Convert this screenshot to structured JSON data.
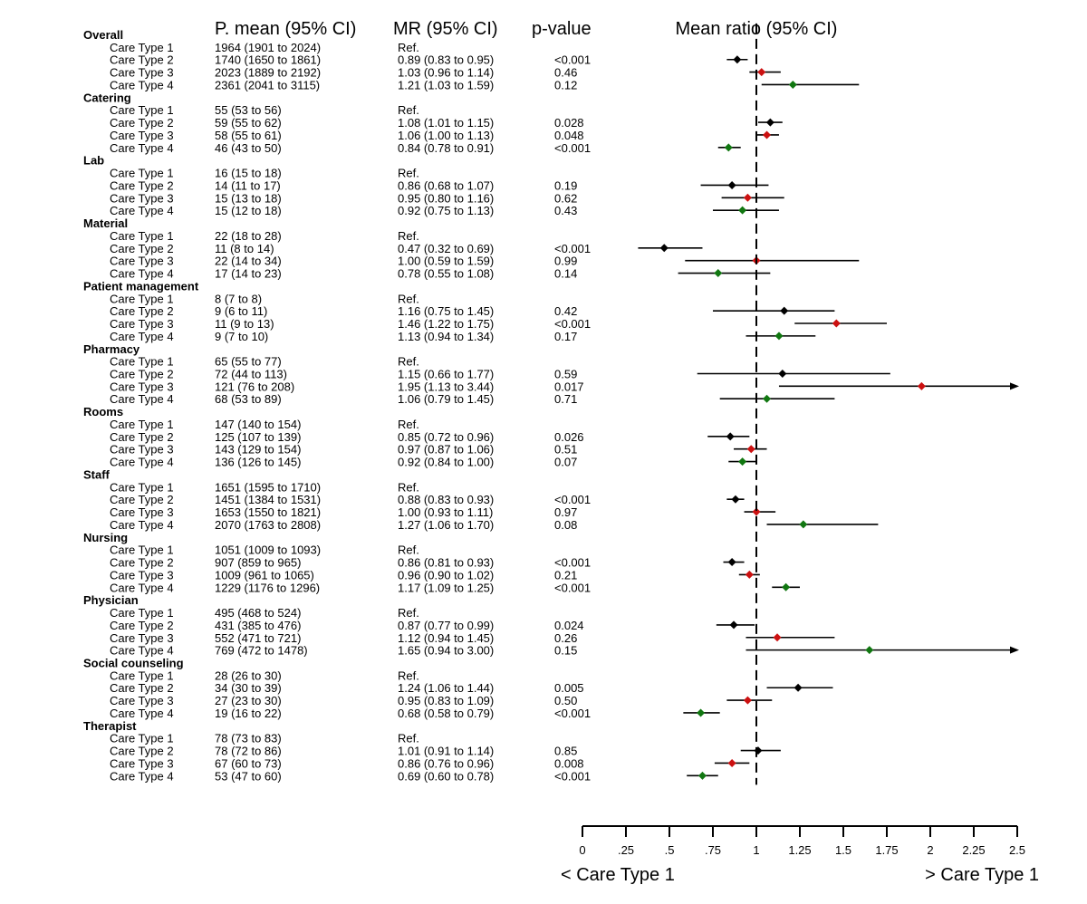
{
  "chart_data": {
    "type": "forest",
    "title": "Mean ratio (95% CI)",
    "headers": {
      "label": "",
      "pmean": "P. mean (95% CI)",
      "mr": "MR (95% CI)",
      "pvalue": "p-value",
      "plot": "Mean ratio (95% CI)"
    },
    "reference_line": 1,
    "xlim": [
      0,
      2.5
    ],
    "ticks": [
      {
        "value": 0,
        "label": "0"
      },
      {
        "value": 0.25,
        "label": ".25"
      },
      {
        "value": 0.5,
        "label": ".5"
      },
      {
        "value": 0.75,
        "label": ".75"
      },
      {
        "value": 1,
        "label": "1"
      },
      {
        "value": 1.25,
        "label": "1.25"
      },
      {
        "value": 1.5,
        "label": "1.5"
      },
      {
        "value": 1.75,
        "label": "1.75"
      },
      {
        "value": 2,
        "label": "2"
      },
      {
        "value": 2.25,
        "label": "2.25"
      },
      {
        "value": 2.5,
        "label": "2.5"
      }
    ],
    "direction_labels": {
      "left": "< Care Type 1",
      "right": "> Care Type 1"
    },
    "series_colors": {
      "Care Type 2": "#000000",
      "Care Type 3": "#cc1111",
      "Care Type 4": "#117711"
    },
    "groups": [
      {
        "name": "Overall",
        "rows": [
          {
            "label": "Care Type 1",
            "pmean": "1964 (1901 to 2024)",
            "mr": "Ref.",
            "p": "",
            "est": null,
            "lo": null,
            "hi": null
          },
          {
            "label": "Care Type 2",
            "pmean": "1740 (1650 to 1861)",
            "mr": "0.89 (0.83 to 0.95)",
            "p": "<0.001",
            "est": 0.89,
            "lo": 0.83,
            "hi": 0.95
          },
          {
            "label": "Care Type 3",
            "pmean": "2023 (1889 to 2192)",
            "mr": "1.03 (0.96 to 1.14)",
            "p": "0.46",
            "est": 1.03,
            "lo": 0.96,
            "hi": 1.14
          },
          {
            "label": "Care Type 4",
            "pmean": "2361 (2041 to 3115)",
            "mr": "1.21 (1.03 to 1.59)",
            "p": "0.12",
            "est": 1.21,
            "lo": 1.03,
            "hi": 1.59
          }
        ]
      },
      {
        "name": "Catering",
        "rows": [
          {
            "label": "Care Type 1",
            "pmean": "55 (53 to 56)",
            "mr": "Ref.",
            "p": "",
            "est": null,
            "lo": null,
            "hi": null
          },
          {
            "label": "Care Type 2",
            "pmean": "59 (55 to 62)",
            "mr": "1.08 (1.01 to 1.15)",
            "p": "0.028",
            "est": 1.08,
            "lo": 1.01,
            "hi": 1.15
          },
          {
            "label": "Care Type 3",
            "pmean": "58 (55 to 61)",
            "mr": "1.06 (1.00 to 1.13)",
            "p": "0.048",
            "est": 1.06,
            "lo": 1.0,
            "hi": 1.13
          },
          {
            "label": "Care Type 4",
            "pmean": "46 (43 to 50)",
            "mr": "0.84 (0.78 to 0.91)",
            "p": "<0.001",
            "est": 0.84,
            "lo": 0.78,
            "hi": 0.91
          }
        ]
      },
      {
        "name": "Lab",
        "rows": [
          {
            "label": "Care Type 1",
            "pmean": "16 (15 to 18)",
            "mr": "Ref.",
            "p": "",
            "est": null,
            "lo": null,
            "hi": null
          },
          {
            "label": "Care Type 2",
            "pmean": "14 (11 to 17)",
            "mr": "0.86 (0.68 to 1.07)",
            "p": "0.19",
            "est": 0.86,
            "lo": 0.68,
            "hi": 1.07
          },
          {
            "label": "Care Type 3",
            "pmean": "15 (13 to 18)",
            "mr": "0.95 (0.80 to 1.16)",
            "p": "0.62",
            "est": 0.95,
            "lo": 0.8,
            "hi": 1.16
          },
          {
            "label": "Care Type 4",
            "pmean": "15 (12 to 18)",
            "mr": "0.92 (0.75 to 1.13)",
            "p": "0.43",
            "est": 0.92,
            "lo": 0.75,
            "hi": 1.13
          }
        ]
      },
      {
        "name": "Material",
        "rows": [
          {
            "label": "Care Type 1",
            "pmean": "22 (18 to 28)",
            "mr": "Ref.",
            "p": "",
            "est": null,
            "lo": null,
            "hi": null
          },
          {
            "label": "Care Type 2",
            "pmean": "11 (8 to 14)",
            "mr": "0.47 (0.32 to 0.69)",
            "p": "<0.001",
            "est": 0.47,
            "lo": 0.32,
            "hi": 0.69
          },
          {
            "label": "Care Type 3",
            "pmean": "22 (14 to 34)",
            "mr": "1.00 (0.59 to 1.59)",
            "p": "0.99",
            "est": 1.0,
            "lo": 0.59,
            "hi": 1.59
          },
          {
            "label": "Care Type 4",
            "pmean": "17 (14 to 23)",
            "mr": "0.78 (0.55 to 1.08)",
            "p": "0.14",
            "est": 0.78,
            "lo": 0.55,
            "hi": 1.08
          }
        ]
      },
      {
        "name": "Patient management",
        "rows": [
          {
            "label": "Care Type 1",
            "pmean": "8 (7 to 8)",
            "mr": "Ref.",
            "p": "",
            "est": null,
            "lo": null,
            "hi": null
          },
          {
            "label": "Care Type 2",
            "pmean": "9 (6 to 11)",
            "mr": "1.16 (0.75 to 1.45)",
            "p": "0.42",
            "est": 1.16,
            "lo": 0.75,
            "hi": 1.45
          },
          {
            "label": "Care Type 3",
            "pmean": "11 (9 to 13)",
            "mr": "1.46 (1.22 to 1.75)",
            "p": "<0.001",
            "est": 1.46,
            "lo": 1.22,
            "hi": 1.75
          },
          {
            "label": "Care Type 4",
            "pmean": "9 (7 to 10)",
            "mr": "1.13 (0.94 to 1.34)",
            "p": "0.17",
            "est": 1.13,
            "lo": 0.94,
            "hi": 1.34
          }
        ]
      },
      {
        "name": "Pharmacy",
        "rows": [
          {
            "label": "Care Type 1",
            "pmean": "65 (55 to 77)",
            "mr": "Ref.",
            "p": "",
            "est": null,
            "lo": null,
            "hi": null
          },
          {
            "label": "Care Type 2",
            "pmean": "72 (44 to 113)",
            "mr": "1.15 (0.66 to 1.77)",
            "p": "0.59",
            "est": 1.15,
            "lo": 0.66,
            "hi": 1.77
          },
          {
            "label": "Care Type 3",
            "pmean": "121 (76 to 208)",
            "mr": "1.95 (1.13 to 3.44)",
            "p": "0.017",
            "est": 1.95,
            "lo": 1.13,
            "hi": 3.44
          },
          {
            "label": "Care Type 4",
            "pmean": "68 (53 to 89)",
            "mr": "1.06 (0.79 to 1.45)",
            "p": "0.71",
            "est": 1.06,
            "lo": 0.79,
            "hi": 1.45
          }
        ]
      },
      {
        "name": "Rooms",
        "rows": [
          {
            "label": "Care Type 1",
            "pmean": "147 (140 to 154)",
            "mr": "Ref.",
            "p": "",
            "est": null,
            "lo": null,
            "hi": null
          },
          {
            "label": "Care Type 2",
            "pmean": "125 (107 to 139)",
            "mr": "0.85 (0.72 to 0.96)",
            "p": "0.026",
            "est": 0.85,
            "lo": 0.72,
            "hi": 0.96
          },
          {
            "label": "Care Type 3",
            "pmean": "143 (129 to 154)",
            "mr": "0.97 (0.87 to 1.06)",
            "p": "0.51",
            "est": 0.97,
            "lo": 0.87,
            "hi": 1.06
          },
          {
            "label": "Care Type 4",
            "pmean": "136 (126 to 145)",
            "mr": "0.92 (0.84 to 1.00)",
            "p": "0.07",
            "est": 0.92,
            "lo": 0.84,
            "hi": 1.0
          }
        ]
      },
      {
        "name": "Staff",
        "rows": [
          {
            "label": "Care Type 1",
            "pmean": "1651 (1595 to 1710)",
            "mr": "Ref.",
            "p": "",
            "est": null,
            "lo": null,
            "hi": null
          },
          {
            "label": "Care Type 2",
            "pmean": "1451 (1384 to 1531)",
            "mr": "0.88 (0.83 to 0.93)",
            "p": "<0.001",
            "est": 0.88,
            "lo": 0.83,
            "hi": 0.93
          },
          {
            "label": "Care Type 3",
            "pmean": "1653 (1550 to 1821)",
            "mr": "1.00 (0.93 to 1.11)",
            "p": "0.97",
            "est": 1.0,
            "lo": 0.93,
            "hi": 1.11
          },
          {
            "label": "Care Type 4",
            "pmean": "2070 (1763 to 2808)",
            "mr": "1.27 (1.06 to 1.70)",
            "p": "0.08",
            "est": 1.27,
            "lo": 1.06,
            "hi": 1.7
          }
        ]
      },
      {
        "name": "Nursing",
        "rows": [
          {
            "label": "Care Type 1",
            "pmean": "1051 (1009 to 1093)",
            "mr": "Ref.",
            "p": "",
            "est": null,
            "lo": null,
            "hi": null
          },
          {
            "label": "Care Type 2",
            "pmean": "907 (859 to 965)",
            "mr": "0.86 (0.81 to 0.93)",
            "p": "<0.001",
            "est": 0.86,
            "lo": 0.81,
            "hi": 0.93
          },
          {
            "label": "Care Type 3",
            "pmean": "1009 (961 to 1065)",
            "mr": "0.96 (0.90 to 1.02)",
            "p": "0.21",
            "est": 0.96,
            "lo": 0.9,
            "hi": 1.02
          },
          {
            "label": "Care Type 4",
            "pmean": "1229 (1176 to 1296)",
            "mr": "1.17 (1.09 to 1.25)",
            "p": "<0.001",
            "est": 1.17,
            "lo": 1.09,
            "hi": 1.25
          }
        ]
      },
      {
        "name": "Physician",
        "rows": [
          {
            "label": "Care Type 1",
            "pmean": "495 (468 to 524)",
            "mr": "Ref.",
            "p": "",
            "est": null,
            "lo": null,
            "hi": null
          },
          {
            "label": "Care Type 2",
            "pmean": "431 (385 to 476)",
            "mr": "0.87 (0.77 to 0.99)",
            "p": "0.024",
            "est": 0.87,
            "lo": 0.77,
            "hi": 0.99
          },
          {
            "label": "Care Type 3",
            "pmean": "552 (471 to 721)",
            "mr": "1.12 (0.94 to 1.45)",
            "p": "0.26",
            "est": 1.12,
            "lo": 0.94,
            "hi": 1.45
          },
          {
            "label": "Care Type 4",
            "pmean": "769 (472 to 1478)",
            "mr": "1.65 (0.94 to 3.00)",
            "p": "0.15",
            "est": 1.65,
            "lo": 0.94,
            "hi": 3.0
          }
        ]
      },
      {
        "name": "Social counseling",
        "rows": [
          {
            "label": "Care Type 1",
            "pmean": "28 (26 to 30)",
            "mr": "Ref.",
            "p": "",
            "est": null,
            "lo": null,
            "hi": null
          },
          {
            "label": "Care Type 2",
            "pmean": "34 (30 to 39)",
            "mr": "1.24 (1.06 to 1.44)",
            "p": "0.005",
            "est": 1.24,
            "lo": 1.06,
            "hi": 1.44
          },
          {
            "label": "Care Type 3",
            "pmean": "27 (23 to 30)",
            "mr": "0.95 (0.83 to 1.09)",
            "p": "0.50",
            "est": 0.95,
            "lo": 0.83,
            "hi": 1.09
          },
          {
            "label": "Care Type 4",
            "pmean": "19 (16 to 22)",
            "mr": "0.68 (0.58 to 0.79)",
            "p": "<0.001",
            "est": 0.68,
            "lo": 0.58,
            "hi": 0.79
          }
        ]
      },
      {
        "name": "Therapist",
        "rows": [
          {
            "label": "Care Type 1",
            "pmean": "78 (73 to 83)",
            "mr": "Ref.",
            "p": "",
            "est": null,
            "lo": null,
            "hi": null
          },
          {
            "label": "Care Type 2",
            "pmean": "78 (72 to 86)",
            "mr": "1.01 (0.91 to 1.14)",
            "p": "0.85",
            "est": 1.01,
            "lo": 0.91,
            "hi": 1.14
          },
          {
            "label": "Care Type 3",
            "pmean": "67 (60 to 73)",
            "mr": "0.86 (0.76 to 0.96)",
            "p": "0.008",
            "est": 0.86,
            "lo": 0.76,
            "hi": 0.96
          },
          {
            "label": "Care Type 4",
            "pmean": "53 (47 to 60)",
            "mr": "0.69 (0.60 to 0.78)",
            "p": "<0.001",
            "est": 0.69,
            "lo": 0.6,
            "hi": 0.78
          }
        ]
      }
    ]
  }
}
